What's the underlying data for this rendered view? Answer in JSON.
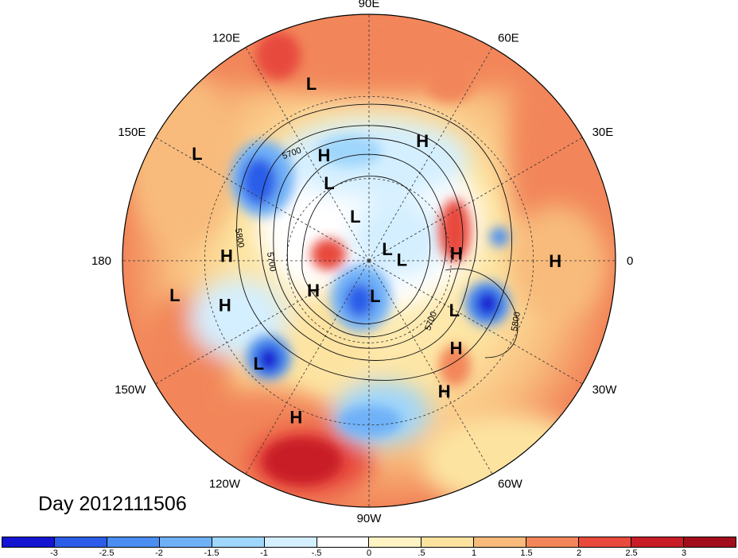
{
  "title": "Day 2012111506",
  "longitude_labels": [
    "90E",
    "60E",
    "30E",
    "0",
    "30W",
    "60W",
    "90W",
    "120W",
    "150W",
    "180",
    "150E",
    "120E"
  ],
  "contour_labels": [
    "5700",
    "5800",
    "5700",
    "5700",
    "5800"
  ],
  "highs_lows": [
    {
      "type": "L",
      "lat": 22,
      "lon": 108
    },
    {
      "type": "H",
      "lat": 48,
      "lon": 113
    },
    {
      "type": "H",
      "lat": 42,
      "lon": 66
    },
    {
      "type": "L",
      "lat": 16,
      "lon": 148
    },
    {
      "type": "H",
      "lat": 38,
      "lon": 178
    },
    {
      "type": "L",
      "lat": 58,
      "lon": 117
    },
    {
      "type": "L",
      "lat": 73,
      "lon": 107
    },
    {
      "type": "L",
      "lat": 78,
      "lon": 2
    },
    {
      "type": "L",
      "lat": 82,
      "lon": 33
    },
    {
      "type": "H",
      "lat": 67,
      "lon": -152
    },
    {
      "type": "H",
      "lat": 58,
      "lon": 5
    },
    {
      "type": "H",
      "lat": 22,
      "lon": 0
    },
    {
      "type": "L",
      "lat": 18,
      "lon": -170
    },
    {
      "type": "H",
      "lat": 35,
      "lon": -163
    },
    {
      "type": "L",
      "lat": 35,
      "lon": -137
    },
    {
      "type": "L",
      "lat": 54,
      "lon": -30
    },
    {
      "type": "H",
      "lat": 45,
      "lon": -45
    },
    {
      "type": "H",
      "lat": 35,
      "lon": -60
    },
    {
      "type": "H",
      "lat": 27,
      "lon": -115
    },
    {
      "type": "L",
      "lat": 77,
      "lon": -80
    }
  ],
  "colorbar": {
    "ticks": [
      "-3",
      "-2.5",
      "-2",
      "-1.5",
      "-1",
      "-.5",
      "0",
      ".5",
      "1",
      "1.5",
      "2",
      "2.5",
      "3"
    ],
    "colors": [
      "#1414d2",
      "#2c5de8",
      "#4a8ef2",
      "#6fb1f7",
      "#9fd6fb",
      "#d4efff",
      "#ffffff",
      "#fff3c4",
      "#fde3a0",
      "#f8bb7c",
      "#f2865a",
      "#e84a3c",
      "#c81d27",
      "#a10d1c"
    ]
  }
}
